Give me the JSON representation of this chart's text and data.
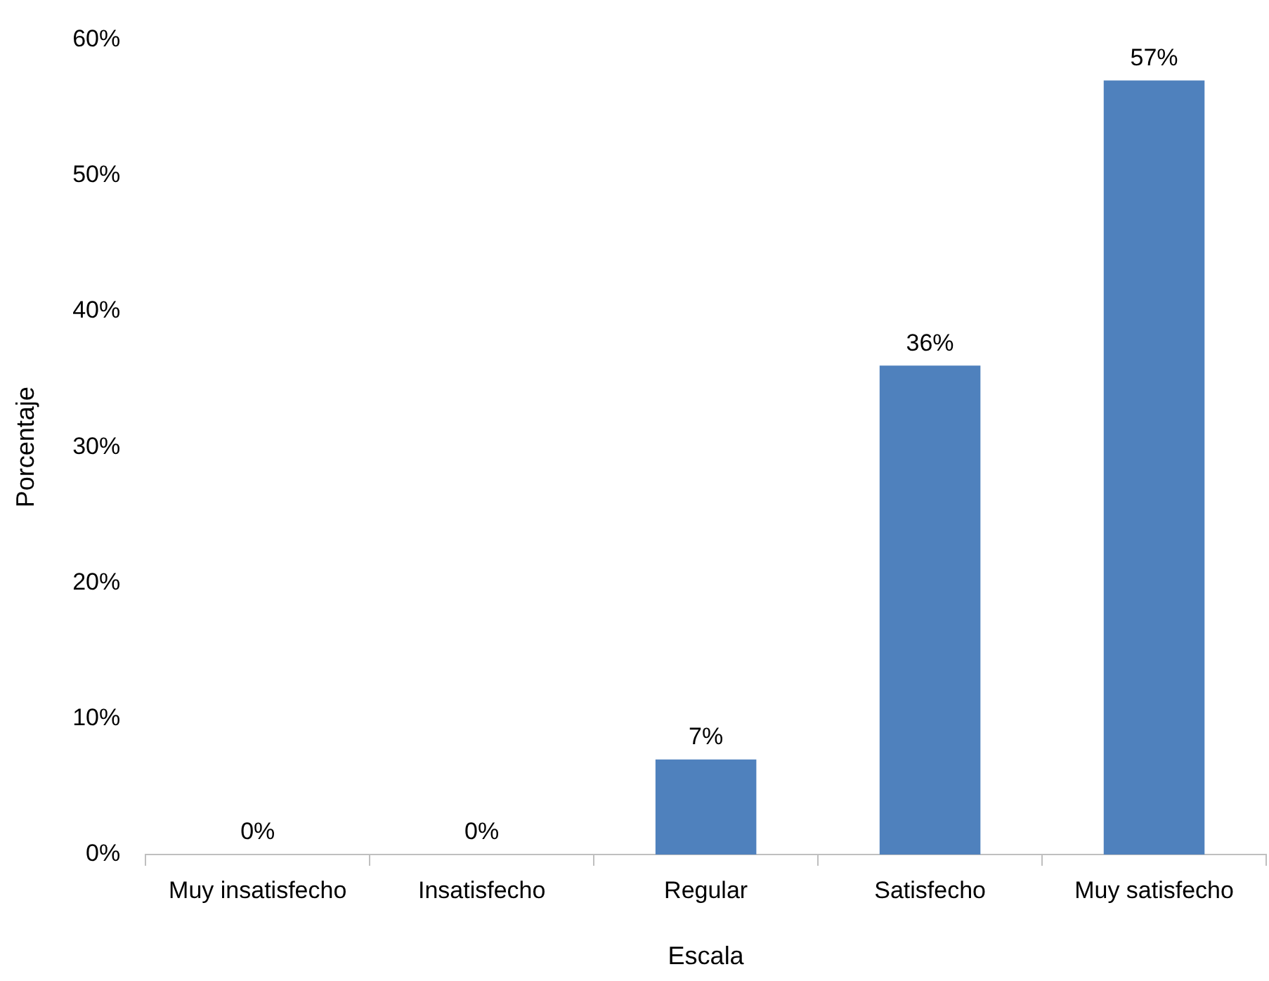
{
  "chart_data": {
    "type": "bar",
    "xlabel": "Escala",
    "ylabel": "Porcentaje",
    "categories": [
      "Muy insatisfecho",
      "Insatisfecho",
      "Regular",
      "Satisfecho",
      "Muy satisfecho"
    ],
    "values": [
      0,
      0,
      7,
      36,
      57
    ],
    "color": "#4f81bd",
    "value_labels": [
      "0%",
      "0%",
      "7%",
      "36%",
      "57%"
    ],
    "ylim": [
      0,
      60
    ],
    "yticks": [
      {
        "value": 0,
        "label": "0%"
      },
      {
        "value": 10,
        "label": "10%"
      },
      {
        "value": 20,
        "label": "20%"
      },
      {
        "value": 30,
        "label": "30%"
      },
      {
        "value": 40,
        "label": "40%"
      },
      {
        "value": 50,
        "label": "50%"
      },
      {
        "value": 60,
        "label": "60%"
      }
    ],
    "legend": false
  }
}
